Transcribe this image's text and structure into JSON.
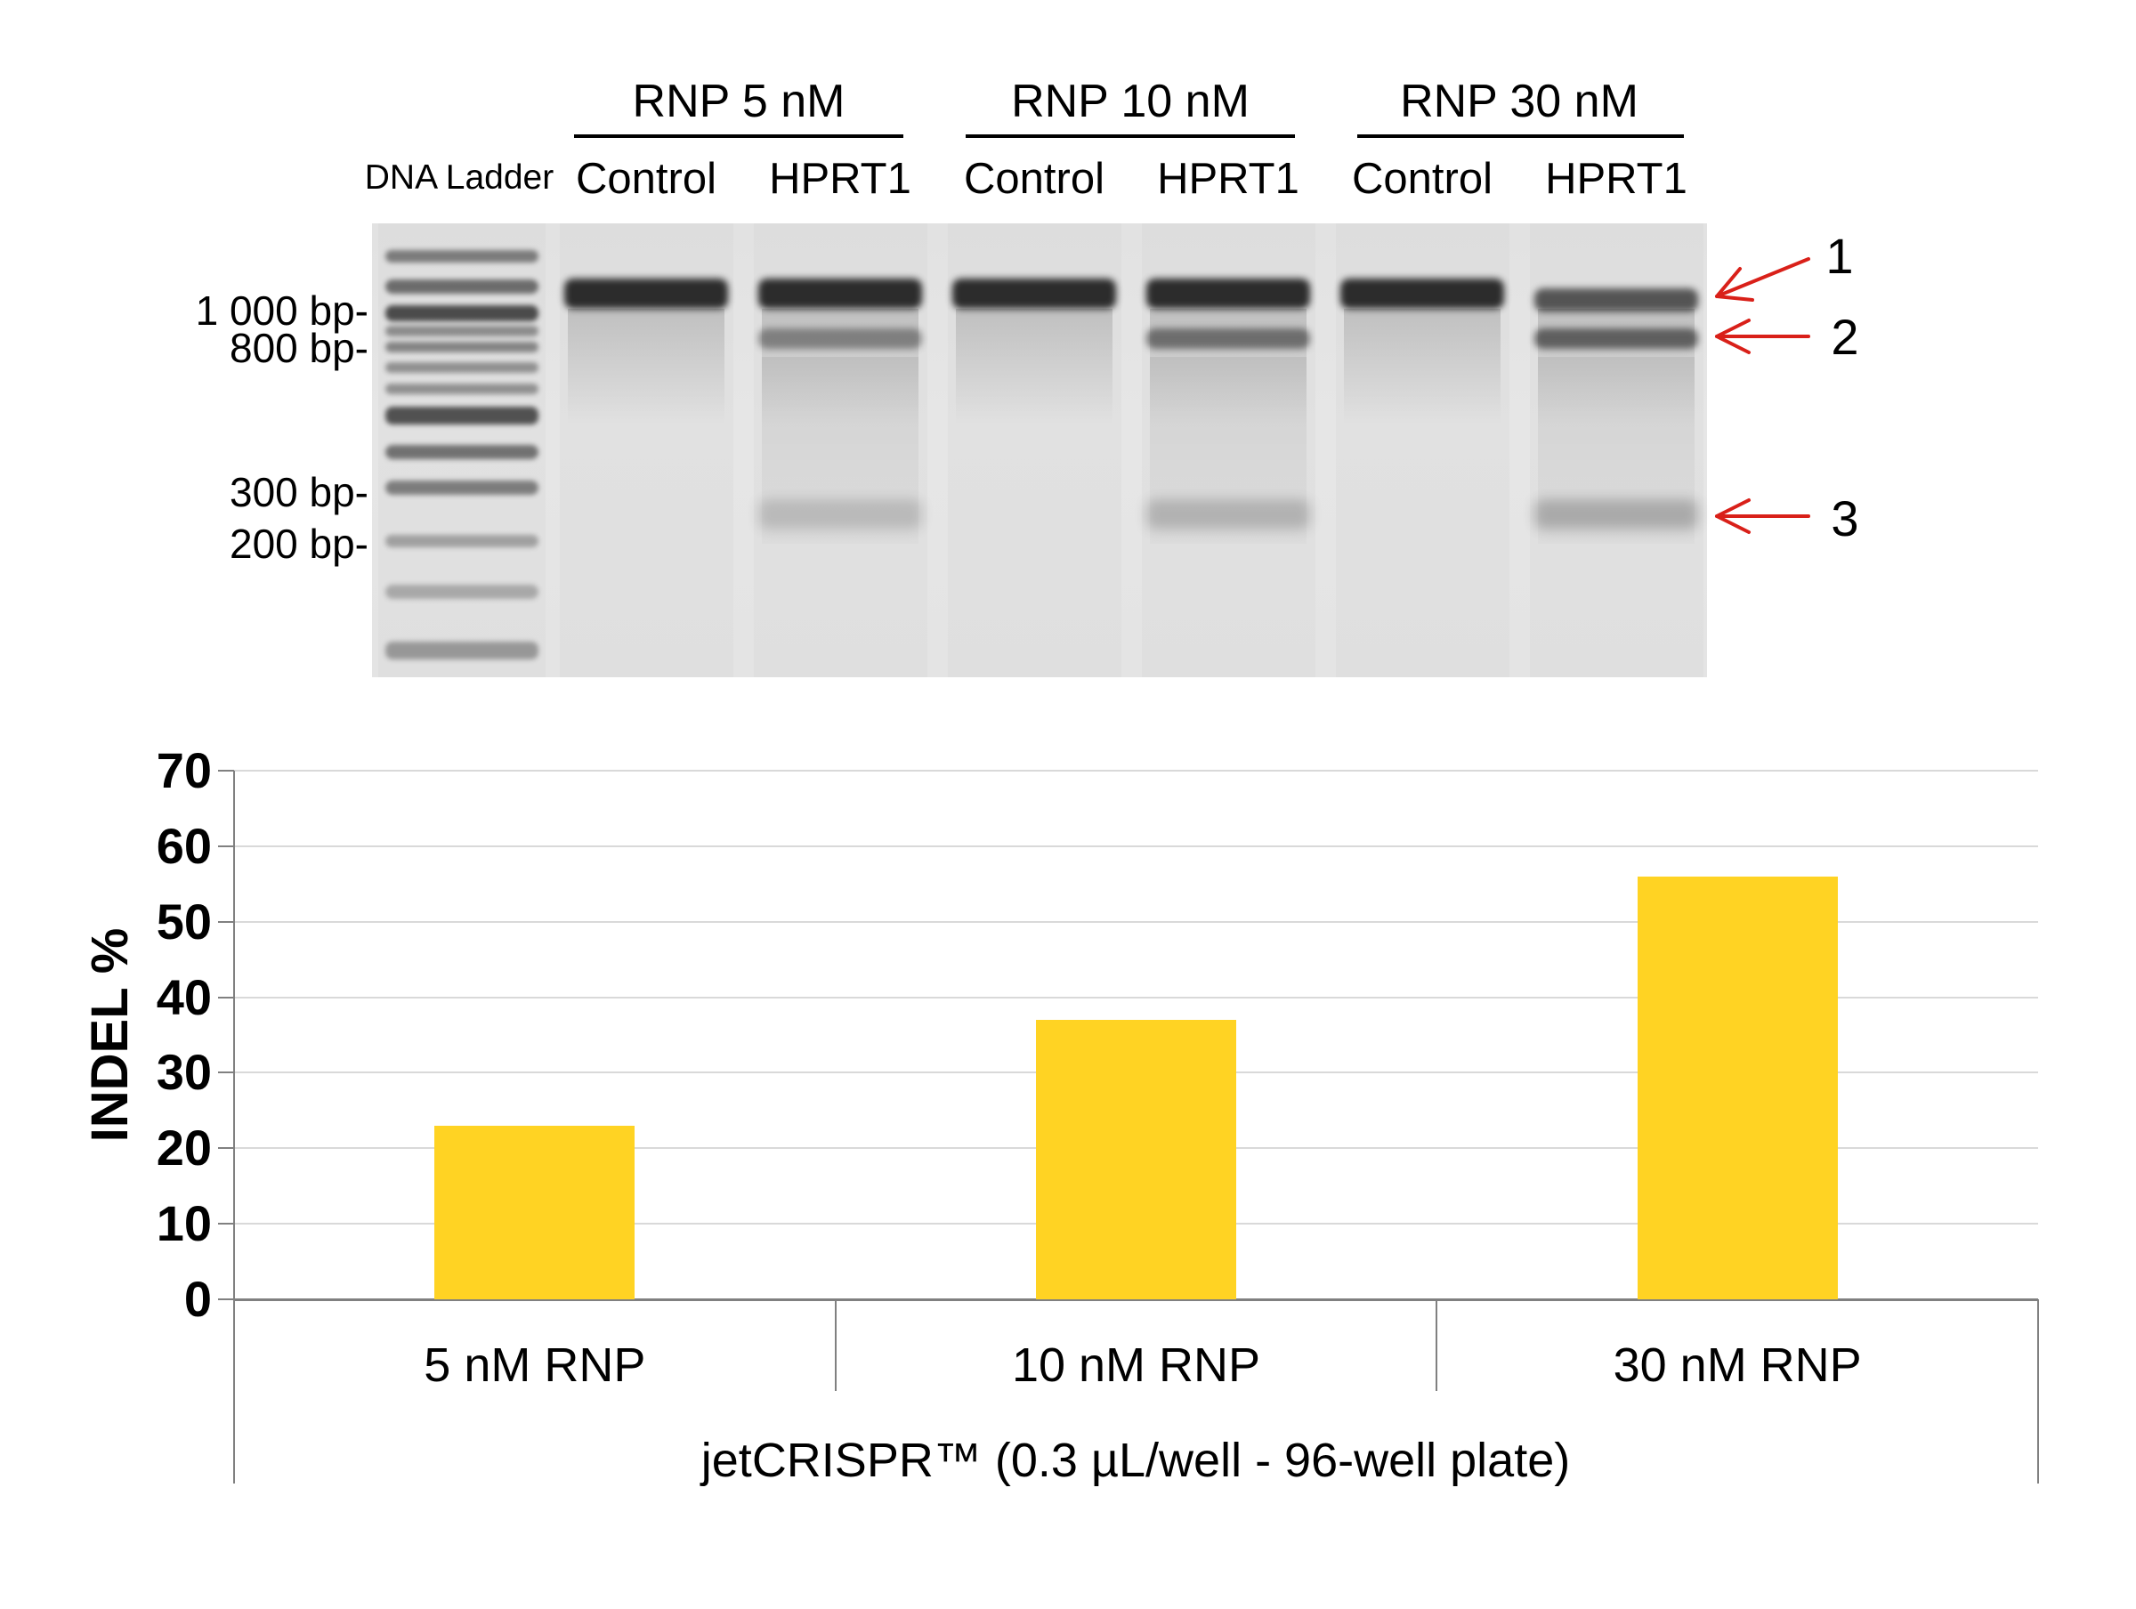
{
  "gel": {
    "group_headers": [
      "RNP 5 nM",
      "RNP 10 nM",
      "RNP 30 nM"
    ],
    "ladder_label": "DNA Ladder",
    "lanes": [
      {
        "group": "RNP 5 nM",
        "label": "Control",
        "bands": [
          "uncut"
        ]
      },
      {
        "group": "RNP 5 nM",
        "label": "HPRT1",
        "bands": [
          "uncut",
          "cleaved-large",
          "cleaved-small"
        ]
      },
      {
        "group": "RNP 10 nM",
        "label": "Control",
        "bands": [
          "uncut"
        ]
      },
      {
        "group": "RNP 10 nM",
        "label": "HPRT1",
        "bands": [
          "uncut",
          "cleaved-large",
          "cleaved-small"
        ]
      },
      {
        "group": "RNP 30 nM",
        "label": "Control",
        "bands": [
          "uncut"
        ]
      },
      {
        "group": "RNP 30 nM",
        "label": "HPRT1",
        "bands": [
          "uncut",
          "cleaved-large",
          "cleaved-small"
        ]
      }
    ],
    "bp_markers": [
      "1 000 bp-",
      "800 bp-",
      "300 bp-",
      "200 bp-"
    ],
    "annotations": [
      "1",
      "2",
      "3"
    ],
    "arrow_color": "#d92019"
  },
  "chart_data": {
    "type": "bar",
    "categories": [
      "5 nM RNP",
      "10 nM RNP",
      "30 nM RNP"
    ],
    "values": [
      23,
      37,
      56
    ],
    "title": "",
    "xlabel": "jetCRISPR™ (0.3 µL/well - 96-well plate)",
    "ylabel": "INDEL %",
    "ylim": [
      0,
      70
    ],
    "yticks": [
      0,
      10,
      20,
      30,
      40,
      50,
      60,
      70
    ],
    "grid": true,
    "legend": "none",
    "bar_color": "#ffd323",
    "gridline_color": "#d9d9d9",
    "axis_color": "#808080"
  }
}
